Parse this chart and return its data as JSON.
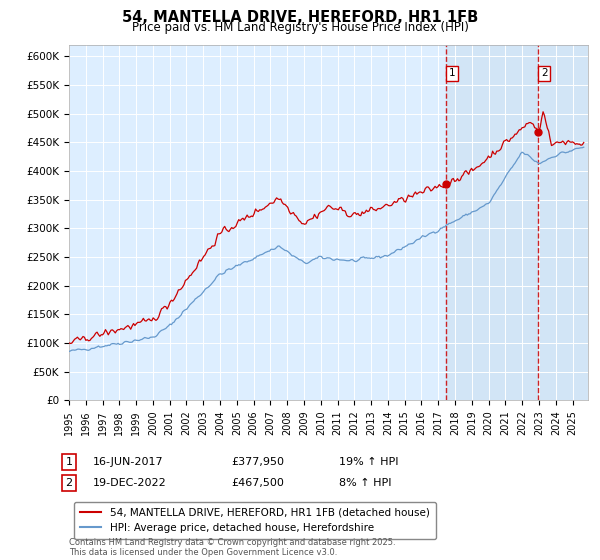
{
  "title": "54, MANTELLA DRIVE, HEREFORD, HR1 1FB",
  "subtitle": "Price paid vs. HM Land Registry's House Price Index (HPI)",
  "ylabel_ticks": [
    "£0",
    "£50K",
    "£100K",
    "£150K",
    "£200K",
    "£250K",
    "£300K",
    "£350K",
    "£400K",
    "£450K",
    "£500K",
    "£550K",
    "£600K"
  ],
  "ytick_values": [
    0,
    50000,
    100000,
    150000,
    200000,
    250000,
    300000,
    350000,
    400000,
    450000,
    500000,
    550000,
    600000
  ],
  "ylim": [
    0,
    620000
  ],
  "xlim_start": 1995.0,
  "xlim_end": 2025.92,
  "vline1_x": 2017.458,
  "vline2_x": 2022.958,
  "marker1_y": 377950,
  "marker2_y": 467500,
  "legend_line1": "54, MANTELLA DRIVE, HEREFORD, HR1 1FB (detached house)",
  "legend_line2": "HPI: Average price, detached house, Herefordshire",
  "footer": "Contains HM Land Registry data © Crown copyright and database right 2025.\nThis data is licensed under the Open Government Licence v3.0.",
  "line_color_red": "#cc0000",
  "line_color_blue": "#6699cc",
  "vline_color": "#cc0000",
  "shade_color": "#ddeeff",
  "plot_bg_color": "#ddeeff",
  "shade_right_color": "#e8f0f8"
}
